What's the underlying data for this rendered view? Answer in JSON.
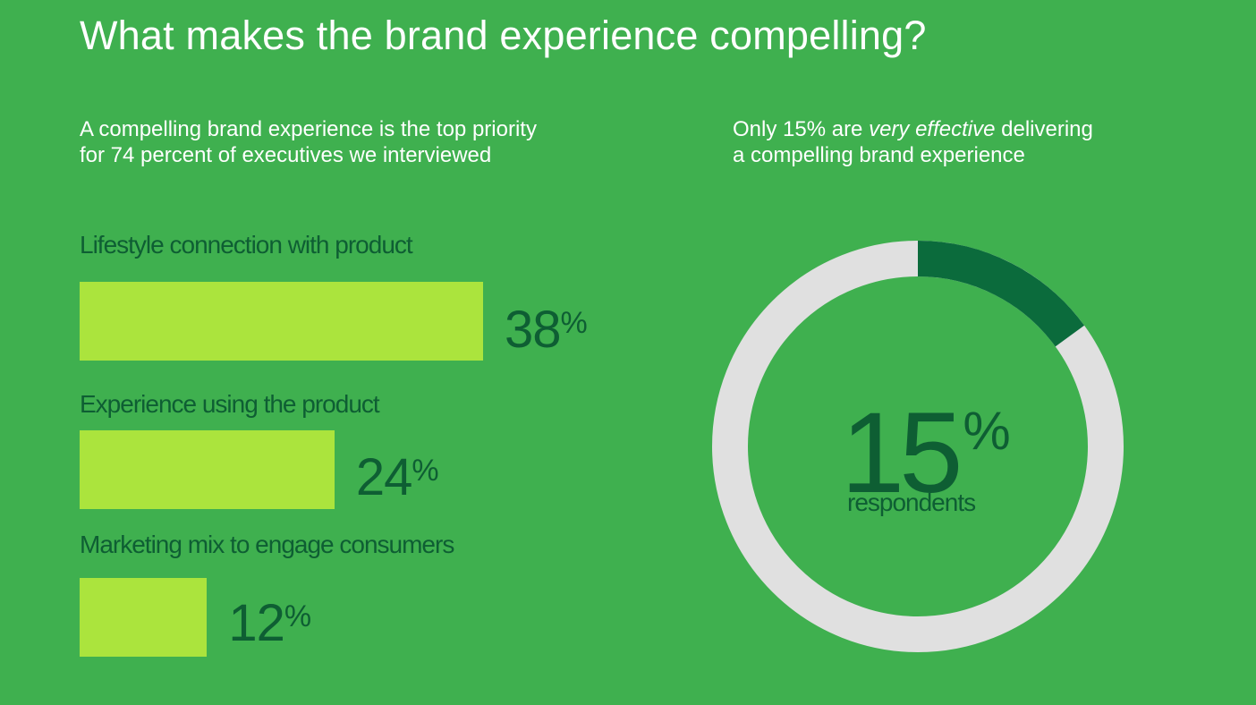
{
  "title": "What makes the brand experience compelling?",
  "left_panel": {
    "subtitle_line1": "A compelling brand experience is the top priority",
    "subtitle_line2": "for 74 percent of executives we interviewed"
  },
  "right_panel": {
    "subtitle_pre": "Only 15% are ",
    "subtitle_em": "very effective",
    "subtitle_post": " delivering",
    "subtitle_line2": "a compelling brand experience"
  },
  "colors": {
    "background": "#3fb04f",
    "bar": "#abe43d",
    "text_dark": "#0e5e33",
    "donut_value": "#0b6b3c",
    "donut_track": "#e0e0e0"
  },
  "chart_data": [
    {
      "type": "bar",
      "orientation": "horizontal",
      "categories": [
        "Lifestyle connection with product",
        "Experience using the product",
        "Marketing mix to engage consumers"
      ],
      "values": [
        38,
        24,
        12
      ],
      "value_labels": [
        "38",
        "24",
        "12"
      ],
      "unit": "%",
      "xlim": [
        0,
        50
      ]
    },
    {
      "type": "pie",
      "variant": "donut",
      "value": 15,
      "value_label": "15",
      "unit": "%",
      "caption": "respondents",
      "total": 100
    }
  ]
}
